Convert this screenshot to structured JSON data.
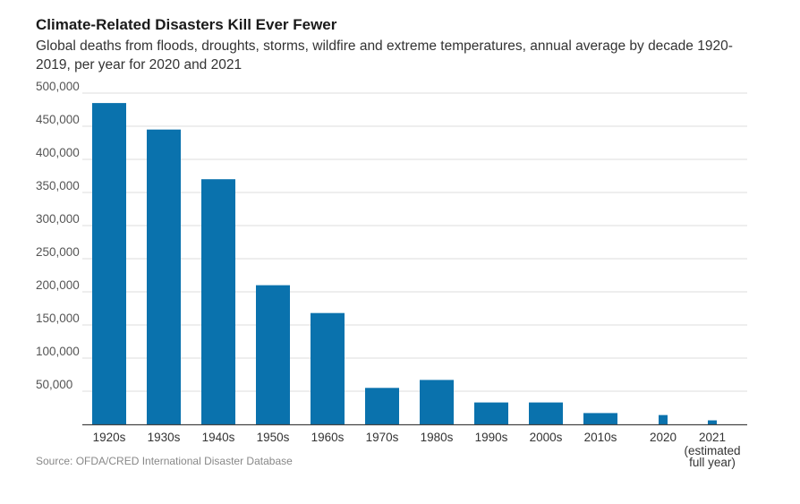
{
  "chart_data": {
    "type": "bar",
    "title": "Climate-Related Disasters Kill Ever Fewer",
    "subtitle": "Global deaths from floods, droughts, storms, wildfire and extreme temperatures, annual average by decade 1920-2019, per year for 2020 and 2021",
    "categories": [
      "1920s",
      "1930s",
      "1940s",
      "1950s",
      "1960s",
      "1970s",
      "1980s",
      "1990s",
      "2000s",
      "2010s",
      "2020",
      "2021"
    ],
    "category_sublabels": {
      "2021": [
        "(estimated",
        "full year)"
      ]
    },
    "values": [
      485000,
      445000,
      370000,
      210000,
      168000,
      55000,
      67000,
      33000,
      33000,
      17000,
      14000,
      6000
    ],
    "ylim": [
      0,
      500000
    ],
    "yticks": [
      50000,
      100000,
      150000,
      200000,
      250000,
      300000,
      350000,
      400000,
      450000,
      500000
    ],
    "ytick_labels": [
      "50,000",
      "100,000",
      "150,000",
      "200,000",
      "250,000",
      "300,000",
      "350,000",
      "400,000",
      "450,000",
      "500,000"
    ],
    "grid": true,
    "source": "Source: OFDA/CRED International Disaster Database",
    "bar_color": "#0a72ad",
    "grid_color": "#dcdcdc",
    "axis_color": "#444444"
  }
}
